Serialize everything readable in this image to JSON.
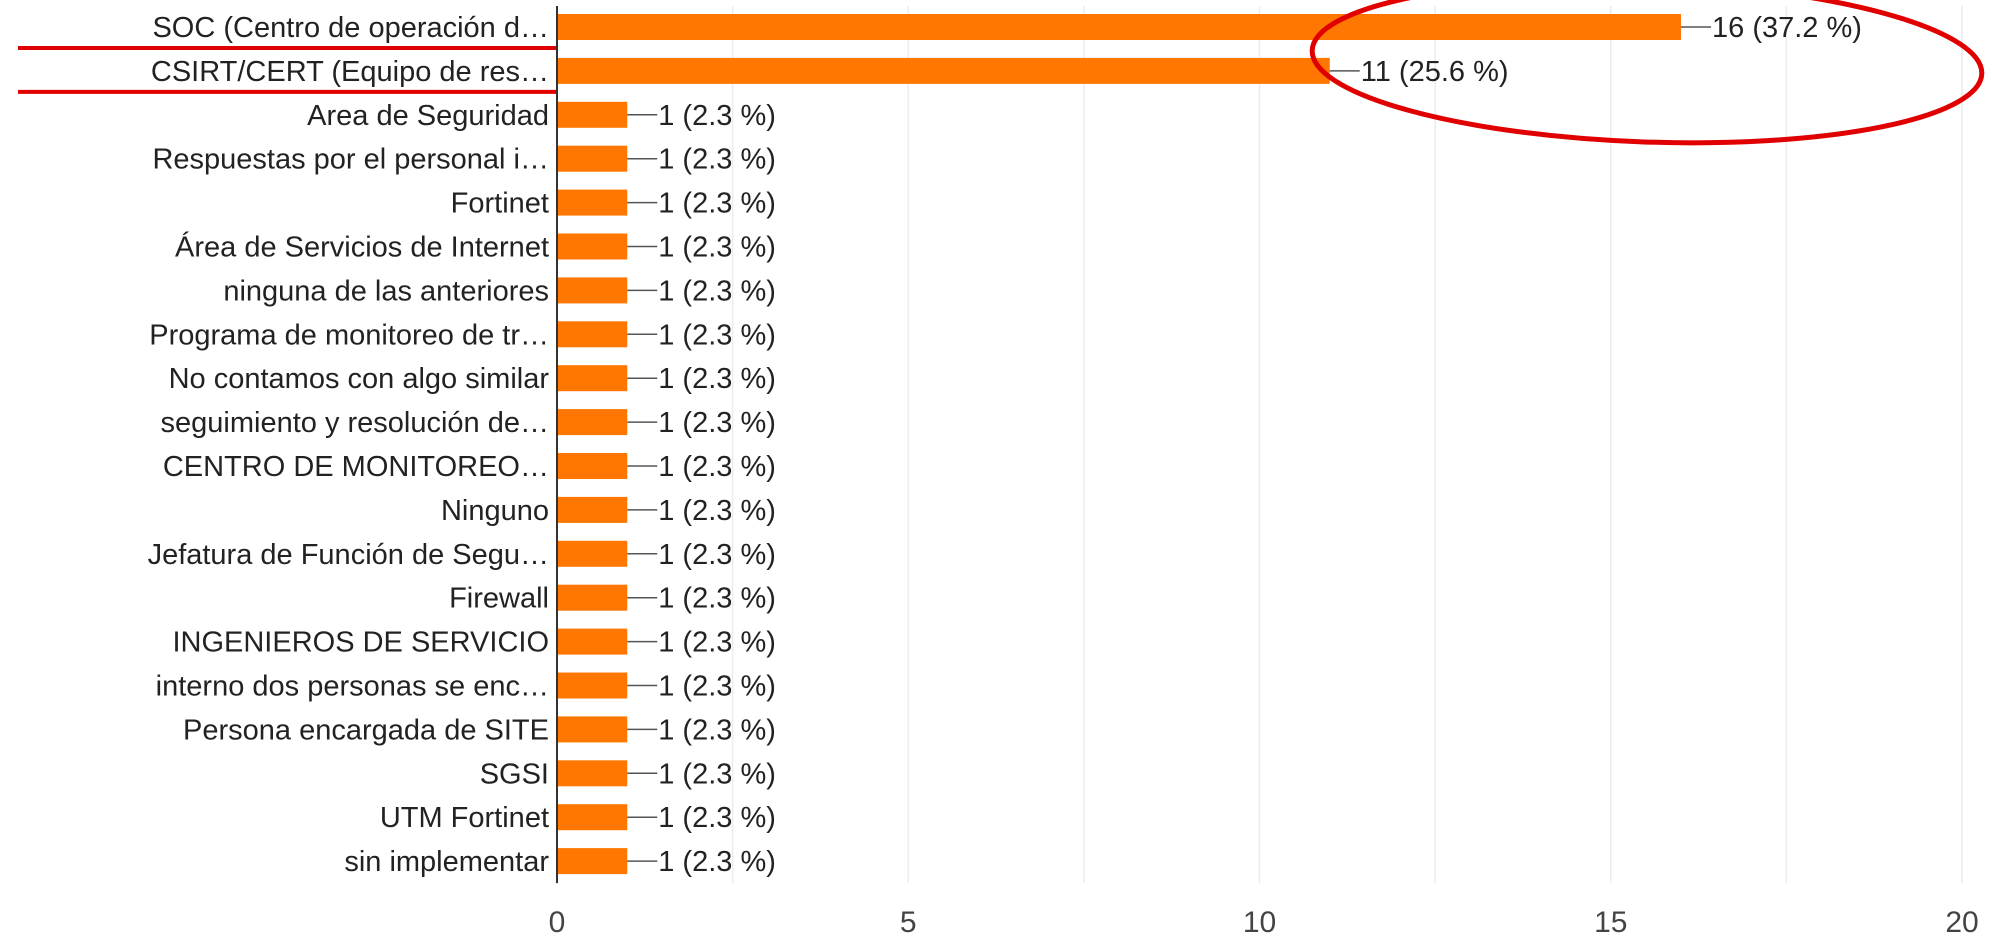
{
  "chart_data": {
    "type": "bar",
    "orientation": "horizontal",
    "bar_color": "#ff7700",
    "annotation_color": "#e00000",
    "categories": [
      "SOC (Centro de operación d…",
      "CSIRT/CERT (Equipo de res…",
      "Area de Seguridad",
      "Respuestas por el personal i…",
      "Fortinet",
      "Área de Servicios de Internet",
      "ninguna de las anteriores",
      "Programa de monitoreo de tr…",
      "No contamos con algo similar",
      "seguimiento y resolución de…",
      "CENTRO DE MONITOREO…",
      "Ninguno",
      "Jefatura de Función de Segu…",
      "Firewall",
      "INGENIEROS DE SERVICIO",
      "interno dos personas se enc…",
      "Persona encargada de SITE",
      "SGSI",
      "UTM Fortinet",
      "sin implementar"
    ],
    "values": [
      16,
      11,
      1,
      1,
      1,
      1,
      1,
      1,
      1,
      1,
      1,
      1,
      1,
      1,
      1,
      1,
      1,
      1,
      1,
      1
    ],
    "value_labels": [
      "16 (37.2 %)",
      "11 (25.6 %)",
      "1 (2.3 %)",
      "1 (2.3 %)",
      "1 (2.3 %)",
      "1 (2.3 %)",
      "1 (2.3 %)",
      "1 (2.3 %)",
      "1 (2.3 %)",
      "1 (2.3 %)",
      "1 (2.3 %)",
      "1 (2.3 %)",
      "1 (2.3 %)",
      "1 (2.3 %)",
      "1 (2.3 %)",
      "1 (2.3 %)",
      "1 (2.3 %)",
      "1 (2.3 %)",
      "1 (2.3 %)",
      "1 (2.3 %)"
    ],
    "xlim": [
      0,
      20
    ],
    "xticks": [
      0,
      5,
      10,
      15,
      20
    ],
    "grid": true,
    "underlined_categories": [
      0,
      1
    ],
    "circled_bars": [
      0,
      1
    ]
  }
}
